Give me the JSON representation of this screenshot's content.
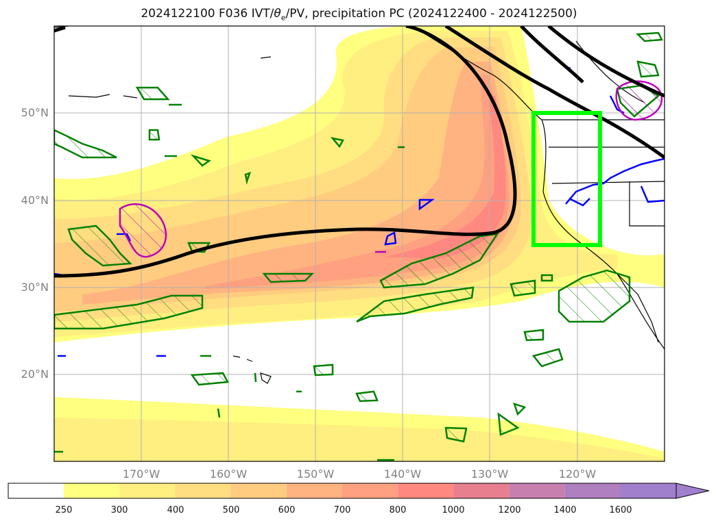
{
  "title": {
    "prefix": "2024122100 F036 IVT/",
    "theta": "θ",
    "theta_sub": "e",
    "suffix": "/PV, precipitation PC (2024122400 - 2024122500)"
  },
  "lat_labels": [
    "50°N",
    "40°N",
    "30°N",
    "20°N"
  ],
  "lon_labels": [
    "170°W",
    "160°W",
    "150°W",
    "140°W",
    "130°W",
    "120°W"
  ],
  "colorbar": {
    "ticks": [
      "250",
      "300",
      "400",
      "500",
      "600",
      "700",
      "800",
      "1000",
      "1200",
      "1400",
      "1600"
    ],
    "colors": [
      "#ffffff",
      "#ffff80",
      "#ffee80",
      "#ffdd80",
      "#ffcc80",
      "#ffb380",
      "#ffa080",
      "#ff8880",
      "#e87f8f",
      "#c77fb0",
      "#b07fc0",
      "#a07fcc"
    ]
  },
  "styles": {
    "bbox_color": "#00ff00",
    "pv_contour_color": "#000000",
    "precip_color": "#008000",
    "theta_color": "#0000ff",
    "magenta_color": "#bb00bb"
  }
}
